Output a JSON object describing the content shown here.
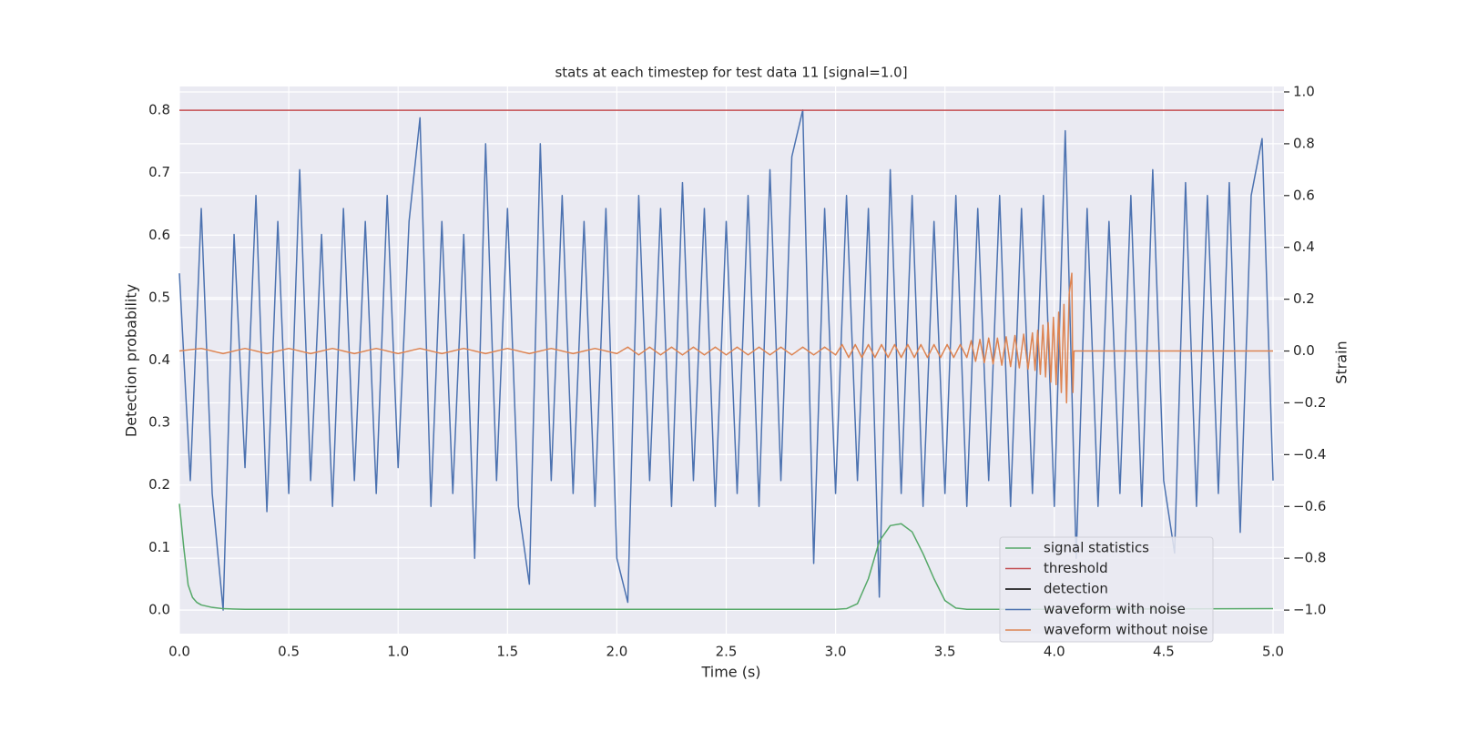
{
  "chart_data": {
    "type": "line",
    "title": "stats at each timestep for test data 11 [signal=1.0]",
    "x_label": "Time (s)",
    "y_label": "Detection probability",
    "y2_label": "Strain",
    "xlim": [
      0,
      5.05
    ],
    "ylim": [
      -0.038,
      0.838
    ],
    "y2lim": [
      -1.091,
      1.021
    ],
    "xticks": [
      {
        "value": 0,
        "label": "0.0"
      },
      {
        "value": 0.5,
        "label": "0.5"
      },
      {
        "value": 1,
        "label": "1.0"
      },
      {
        "value": 1.5,
        "label": "1.5"
      },
      {
        "value": 2,
        "label": "2.0"
      },
      {
        "value": 2.5,
        "label": "2.5"
      },
      {
        "value": 3,
        "label": "3.0"
      },
      {
        "value": 3.5,
        "label": "3.5"
      },
      {
        "value": 4,
        "label": "4.0"
      },
      {
        "value": 4.5,
        "label": "4.5"
      },
      {
        "value": 5,
        "label": "5.0"
      }
    ],
    "yticks": [
      {
        "value": 0,
        "label": "0.0"
      },
      0.1,
      0.2,
      0.3,
      0.4,
      0.5,
      0.6,
      0.7,
      0.8
    ],
    "y2ticks": [
      {
        "value": -1,
        "label": "−1.0"
      },
      {
        "value": -0.8,
        "label": "−0.8"
      },
      {
        "value": -0.6,
        "label": "−0.6"
      },
      {
        "value": -0.4,
        "label": "−0.4"
      },
      {
        "value": -0.2,
        "label": "−0.2"
      },
      {
        "value": 0,
        "label": "0.0"
      },
      0.2,
      0.4,
      0.6,
      0.8,
      {
        "value": 1,
        "label": "1.0"
      }
    ],
    "grid": true,
    "legend": "lower right",
    "series": [
      {
        "name": "signal statistics",
        "color": "#55a868",
        "x": [
          0,
          0.02,
          0.04,
          0.06,
          0.08,
          0.1,
          0.15,
          0.2,
          0.3,
          3.0,
          3.05,
          3.1,
          3.15,
          3.2,
          3.25,
          3.3,
          3.35,
          3.4,
          3.45,
          3.5,
          3.55,
          3.6,
          4.0,
          5.0
        ],
        "values": [
          0.17,
          0.1,
          0.04,
          0.02,
          0.012,
          0.008,
          0.004,
          0.002,
          0.001,
          0.001,
          0.002,
          0.01,
          0.05,
          0.11,
          0.135,
          0.138,
          0.125,
          0.09,
          0.05,
          0.015,
          0.003,
          0.001,
          0.001,
          0.002
        ]
      },
      {
        "name": "threshold",
        "color": "#c44e52",
        "y": 0.8
      },
      {
        "name": "detection",
        "color": "#000000"
      },
      {
        "name": "waveform with noise",
        "color": "#4c72b0",
        "axis": "y2",
        "x": [
          0,
          0.05,
          0.1,
          0.15,
          0.2,
          0.25,
          0.3,
          0.35,
          0.4,
          0.45,
          0.5,
          0.55,
          0.6,
          0.65,
          0.7,
          0.75,
          0.8,
          0.85,
          0.9,
          0.95,
          1.0,
          1.05,
          1.1,
          1.15,
          1.2,
          1.25,
          1.3,
          1.35,
          1.4,
          1.45,
          1.5,
          1.55,
          1.6,
          1.65,
          1.7,
          1.75,
          1.8,
          1.85,
          1.9,
          1.95,
          2.0,
          2.05,
          2.1,
          2.15,
          2.2,
          2.25,
          2.3,
          2.35,
          2.4,
          2.45,
          2.5,
          2.55,
          2.6,
          2.65,
          2.7,
          2.75,
          2.8,
          2.85,
          2.9,
          2.95,
          3.0,
          3.05,
          3.1,
          3.15,
          3.2,
          3.25,
          3.3,
          3.35,
          3.4,
          3.45,
          3.5,
          3.55,
          3.6,
          3.65,
          3.7,
          3.75,
          3.8,
          3.85,
          3.9,
          3.95,
          4.0,
          4.05,
          4.1,
          4.15,
          4.2,
          4.25,
          4.3,
          4.35,
          4.4,
          4.45,
          4.5,
          4.55,
          4.6,
          4.65,
          4.7,
          4.75,
          4.8,
          4.85,
          4.9,
          4.95,
          5.0
        ],
        "values": [
          0.3,
          -0.5,
          0.55,
          -0.55,
          -1.0,
          0.45,
          -0.45,
          0.6,
          -0.62,
          0.5,
          -0.55,
          0.7,
          -0.5,
          0.45,
          -0.6,
          0.55,
          -0.5,
          0.5,
          -0.55,
          0.6,
          -0.45,
          0.5,
          0.9,
          -0.6,
          0.5,
          -0.55,
          0.45,
          -0.8,
          0.8,
          -0.5,
          0.55,
          -0.6,
          -0.9,
          0.8,
          -0.5,
          0.6,
          -0.55,
          0.5,
          -0.6,
          0.55,
          -0.8,
          -0.97,
          0.6,
          -0.5,
          0.55,
          -0.6,
          0.65,
          -0.5,
          0.55,
          -0.6,
          0.5,
          -0.55,
          0.6,
          -0.6,
          0.7,
          -0.5,
          0.75,
          0.93,
          -0.82,
          0.55,
          -0.55,
          0.6,
          -0.5,
          0.55,
          -0.95,
          0.7,
          -0.55,
          0.6,
          -0.6,
          0.5,
          -0.55,
          0.6,
          -0.6,
          0.55,
          -0.5,
          0.6,
          -0.6,
          0.55,
          -0.55,
          0.6,
          -0.6,
          0.85,
          -0.8,
          0.55,
          -0.6,
          0.5,
          -0.55,
          0.6,
          -0.6,
          0.7,
          -0.5,
          -0.78,
          0.65,
          -0.6,
          0.6,
          -0.55,
          0.65,
          -0.7,
          0.6,
          0.82,
          -0.5
        ]
      },
      {
        "name": "waveform without noise",
        "color": "#dd8452",
        "axis": "y2",
        "x": [
          0,
          0.1,
          0.2,
          0.3,
          0.4,
          0.5,
          0.6,
          0.7,
          0.8,
          0.9,
          1.0,
          1.1,
          1.2,
          1.3,
          1.4,
          1.5,
          1.6,
          1.7,
          1.8,
          1.9,
          2.0,
          2.05,
          2.1,
          2.15,
          2.2,
          2.25,
          2.3,
          2.35,
          2.4,
          2.45,
          2.5,
          2.55,
          2.6,
          2.65,
          2.7,
          2.75,
          2.8,
          2.85,
          2.9,
          2.95,
          3.0,
          3.03,
          3.06,
          3.09,
          3.12,
          3.15,
          3.18,
          3.21,
          3.24,
          3.27,
          3.3,
          3.33,
          3.36,
          3.39,
          3.42,
          3.45,
          3.48,
          3.51,
          3.54,
          3.57,
          3.6,
          3.62,
          3.64,
          3.66,
          3.68,
          3.7,
          3.72,
          3.74,
          3.76,
          3.78,
          3.8,
          3.82,
          3.84,
          3.86,
          3.88,
          3.9,
          3.912,
          3.924,
          3.936,
          3.948,
          3.96,
          3.972,
          3.984,
          3.996,
          4.008,
          4.02,
          4.032,
          4.044,
          4.056,
          4.068,
          4.08,
          4.085,
          4.09,
          5.0
        ],
        "values": [
          0,
          0.01,
          -0.01,
          0.01,
          -0.01,
          0.01,
          -0.01,
          0.01,
          -0.01,
          0.01,
          -0.01,
          0.01,
          -0.01,
          0.01,
          -0.01,
          0.01,
          -0.01,
          0.01,
          -0.01,
          0.01,
          -0.01,
          0.015,
          -0.015,
          0.015,
          -0.015,
          0.015,
          -0.015,
          0.015,
          -0.015,
          0.015,
          -0.015,
          0.015,
          -0.015,
          0.015,
          -0.015,
          0.015,
          -0.015,
          0.015,
          -0.015,
          0.015,
          -0.015,
          0.025,
          -0.025,
          0.025,
          -0.025,
          0.025,
          -0.025,
          0.025,
          -0.025,
          0.025,
          -0.025,
          0.025,
          -0.025,
          0.025,
          -0.025,
          0.025,
          -0.025,
          0.025,
          -0.025,
          0.025,
          -0.025,
          0.04,
          -0.04,
          0.045,
          -0.045,
          0.05,
          -0.05,
          0.05,
          -0.055,
          0.055,
          -0.06,
          0.06,
          -0.065,
          0.065,
          -0.07,
          0.07,
          -0.075,
          0.08,
          -0.09,
          0.1,
          -0.1,
          0.11,
          -0.12,
          0.13,
          -0.13,
          0.15,
          -0.16,
          0.18,
          -0.2,
          0.22,
          0.3,
          -0.16,
          0,
          0
        ]
      }
    ]
  }
}
